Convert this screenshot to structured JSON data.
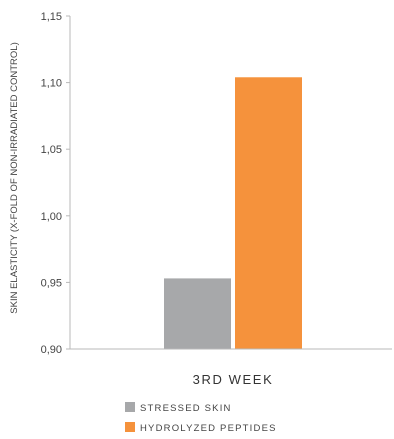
{
  "chart_data": {
    "type": "bar",
    "categories": [
      "3RD WEEK"
    ],
    "series": [
      {
        "name": "STRESSED SKIN",
        "values": [
          0.953
        ],
        "color": "#a7a8aa"
      },
      {
        "name": "HYDROLYZED PEPTIDES",
        "values": [
          1.104
        ],
        "color": "#f5923c"
      }
    ],
    "ylabel": "SKIN ELASTICITY (X-FOLD OF NON-IRRADIATED CONTROL)",
    "xlabel": "",
    "ylim": [
      0.9,
      1.15
    ],
    "yticks": [
      "0,90",
      "0,95",
      "1,00",
      "1,05",
      "1,10",
      "1,15"
    ],
    "grid": false,
    "legend_position": "bottom-center"
  }
}
